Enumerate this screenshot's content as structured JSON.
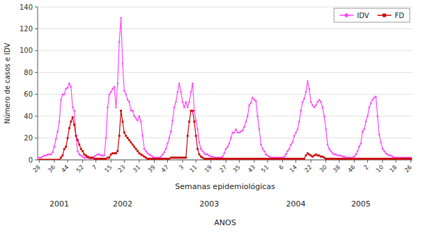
{
  "chart_data": {
    "type": "line",
    "xlabel": "Semanas epidemiológicas",
    "ylabel": "Número de casos e IDV",
    "annotations": [
      {
        "text": "2001",
        "x": 12
      },
      {
        "text": "2002",
        "x": 50
      },
      {
        "text": "2003",
        "x": 102
      },
      {
        "text": "2004",
        "x": 154
      },
      {
        "text": "2005",
        "x": 193
      },
      {
        "text": "ANOS"
      }
    ],
    "ylim": [
      0,
      140
    ],
    "yticks": [
      0,
      20,
      40,
      60,
      80,
      100,
      120,
      140
    ],
    "grid": true,
    "legend": "upper right",
    "categories": [
      "28",
      null,
      null,
      null,
      null,
      null,
      null,
      null,
      null,
      "36",
      null,
      null,
      null,
      null,
      null,
      null,
      null,
      "44",
      null,
      null,
      null,
      null,
      null,
      null,
      null,
      null,
      "52",
      null,
      null,
      null,
      null,
      null,
      null,
      null,
      "7",
      null,
      null,
      null,
      null,
      null,
      null,
      null,
      null,
      "15",
      null,
      null,
      null,
      null,
      null,
      null,
      null,
      "23",
      null,
      null,
      null,
      null,
      null,
      null,
      null,
      null,
      "31",
      null,
      null,
      null,
      null,
      null,
      null,
      null,
      null,
      "39",
      null,
      null,
      null,
      null,
      null,
      null,
      null,
      "47",
      null,
      null,
      null,
      null,
      null,
      null,
      null,
      null,
      "3",
      null,
      null,
      null,
      null,
      null,
      null,
      null,
      "11",
      null,
      null,
      null,
      null,
      null,
      null,
      null,
      null,
      "19",
      null,
      null,
      null,
      null,
      null,
      null,
      null,
      null,
      "27",
      null,
      null,
      null,
      null,
      null,
      null,
      null,
      "35",
      null,
      null,
      null,
      null,
      null,
      null,
      null,
      null,
      "43",
      null,
      null,
      null,
      null,
      null,
      null,
      null,
      "51",
      null,
      null,
      null,
      null,
      null,
      null,
      null,
      null,
      "6",
      null,
      null,
      null,
      null,
      null,
      null,
      null,
      "14",
      null,
      null,
      null,
      null,
      null,
      null,
      null,
      null,
      "22",
      null,
      null,
      null,
      null,
      null,
      null,
      null,
      null,
      "30",
      null,
      null,
      null,
      null,
      null,
      null,
      null,
      "38",
      null,
      null,
      null,
      null,
      null,
      null,
      null,
      null,
      "46",
      null,
      null,
      null,
      null,
      null,
      null,
      null,
      "2",
      null,
      null,
      null,
      null,
      null,
      null,
      null,
      null,
      "10",
      null,
      null,
      null,
      null,
      null,
      null,
      null,
      "18",
      null,
      null,
      null,
      null,
      null,
      null,
      null,
      null,
      "26"
    ],
    "series": [
      {
        "name": "IDV",
        "color": "#ff44ff",
        "marker": "circle",
        "values": [
          2,
          2,
          3,
          4,
          4,
          5,
          5,
          5,
          7,
          12,
          19,
          26,
          35,
          55,
          60,
          60,
          65,
          66,
          70,
          67,
          48,
          45,
          22,
          8,
          5,
          4,
          3,
          2,
          2,
          2,
          2,
          1,
          2,
          3,
          4,
          5,
          5,
          4,
          4,
          4,
          20,
          48,
          60,
          62,
          65,
          67,
          48,
          70,
          108,
          130,
          88,
          63,
          60,
          55,
          53,
          45,
          45,
          40,
          38,
          36,
          40,
          35,
          22,
          10,
          8,
          6,
          5,
          4,
          3,
          2,
          2,
          2,
          2,
          3,
          5,
          7,
          10,
          15,
          20,
          26,
          36,
          48,
          53,
          62,
          70,
          62,
          53,
          48,
          53,
          48,
          53,
          62,
          70,
          45,
          36,
          28,
          16,
          10,
          8,
          6,
          5,
          5,
          4,
          3,
          3,
          2,
          2,
          2,
          2,
          2,
          3,
          6,
          10,
          12,
          15,
          20,
          25,
          25,
          28,
          25,
          25,
          26,
          27,
          30,
          35,
          40,
          50,
          52,
          57,
          55,
          54,
          40,
          28,
          14,
          10,
          8,
          5,
          4,
          3,
          2,
          2,
          2,
          2,
          2,
          2,
          2,
          2,
          3,
          5,
          8,
          10,
          14,
          16,
          22,
          25,
          28,
          35,
          45,
          53,
          56,
          62,
          72,
          65,
          53,
          50,
          48,
          50,
          53,
          55,
          53,
          48,
          40,
          28,
          14,
          10,
          8,
          6,
          5,
          5,
          4,
          4,
          4,
          3,
          3,
          2,
          2,
          2,
          2,
          2,
          3,
          5,
          8,
          12,
          15,
          26,
          28,
          35,
          40,
          48,
          52,
          55,
          57,
          58,
          40,
          23,
          16,
          10,
          8,
          6,
          5,
          4,
          4,
          3,
          2,
          2,
          2,
          2,
          2,
          2,
          2,
          2,
          2,
          2,
          2
        ]
      },
      {
        "name": "FD",
        "color": "#cc0000",
        "marker": "square",
        "values": [
          0,
          0,
          0,
          0,
          0,
          0,
          0,
          0,
          0,
          0,
          0,
          0,
          0,
          2,
          4,
          10,
          12,
          20,
          29,
          35,
          39,
          32,
          22,
          18,
          14,
          10,
          8,
          5,
          4,
          3,
          2,
          2,
          2,
          1,
          1,
          1,
          1,
          1,
          1,
          1,
          1,
          2,
          2,
          5,
          6,
          6,
          6,
          8,
          22,
          45,
          35,
          25,
          22,
          20,
          18,
          16,
          14,
          12,
          10,
          8,
          6,
          5,
          4,
          3,
          2,
          1,
          1,
          1,
          1,
          1,
          1,
          1,
          1,
          1,
          1,
          1,
          1,
          1,
          1,
          2,
          2,
          2,
          2,
          2,
          2,
          2,
          2,
          2,
          2,
          22,
          35,
          45,
          45,
          35,
          22,
          10,
          5,
          3,
          2,
          1,
          1,
          1,
          1,
          1,
          1,
          1,
          1,
          1,
          1,
          1,
          1,
          1,
          1,
          1,
          1,
          1,
          1,
          1,
          1,
          1,
          1,
          1,
          1,
          1,
          1,
          1,
          1,
          1,
          1,
          1,
          1,
          1,
          1,
          1,
          1,
          1,
          1,
          1,
          1,
          1,
          1,
          1,
          1,
          1,
          1,
          1,
          1,
          1,
          1,
          1,
          1,
          1,
          1,
          1,
          1,
          1,
          1,
          1,
          1,
          1,
          4,
          6,
          5,
          4,
          3,
          4,
          5,
          4,
          4,
          3,
          3,
          2,
          1,
          1,
          1,
          1,
          1,
          1,
          1,
          1,
          1,
          1,
          1,
          1,
          1,
          1,
          1,
          1,
          1,
          1,
          1,
          1,
          1,
          1,
          1,
          1,
          1,
          1,
          1,
          1,
          1,
          1,
          1,
          1,
          1,
          1,
          1,
          1,
          1,
          1,
          1,
          1,
          1,
          1,
          1,
          1,
          1,
          1,
          1,
          1,
          1,
          1,
          1,
          1
        ]
      }
    ]
  }
}
